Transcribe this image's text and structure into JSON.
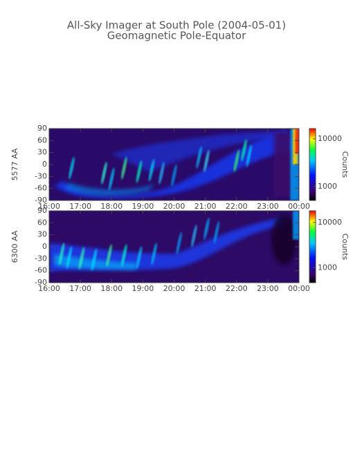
{
  "header": {
    "title": "All-Sky Imager at South Pole (2004-05-01)",
    "subtitle": "Geomagnetic Pole-Equator"
  },
  "chart_data": [
    {
      "type": "heatmap",
      "ylabel": "5577 AA",
      "xlim": [
        16,
        24
      ],
      "xticks": [
        {
          "value": 16,
          "label": "16:00"
        },
        {
          "value": 17,
          "label": "17:00"
        },
        {
          "value": 18,
          "label": "18:00"
        },
        {
          "value": 19,
          "label": "19:00"
        },
        {
          "value": 20,
          "label": "20:00"
        },
        {
          "value": 21,
          "label": "21:00"
        },
        {
          "value": 22,
          "label": "22:00"
        },
        {
          "value": 23,
          "label": "23:00"
        },
        {
          "value": 24,
          "label": "00:00"
        }
      ],
      "ylim": [
        -90,
        90
      ],
      "yticks": [
        -90,
        -60,
        -30,
        0,
        30,
        60,
        90
      ],
      "colorbar": {
        "label": "Counts",
        "scale": "log",
        "lim": [
          515,
          16500
        ],
        "ticks": [
          1000,
          10000
        ]
      }
    },
    {
      "type": "heatmap",
      "ylabel": "6300 AA",
      "xlim": [
        16,
        24
      ],
      "xticks": [
        {
          "value": 16,
          "label": "16:00"
        },
        {
          "value": 17,
          "label": "17:00"
        },
        {
          "value": 18,
          "label": "18:00"
        },
        {
          "value": 19,
          "label": "19:00"
        },
        {
          "value": 20,
          "label": "20:00"
        },
        {
          "value": 21,
          "label": "21:00"
        },
        {
          "value": 22,
          "label": "22:00"
        },
        {
          "value": 23,
          "label": "23:00"
        },
        {
          "value": 24,
          "label": "00:00"
        }
      ],
      "ylim": [
        -90,
        90
      ],
      "yticks": [
        -90,
        -60,
        -30,
        0,
        30,
        60,
        90
      ],
      "colorbar": {
        "label": "Counts",
        "scale": "log",
        "lim": [
          470,
          18000
        ],
        "ticks": [
          1000,
          10000
        ]
      }
    }
  ]
}
